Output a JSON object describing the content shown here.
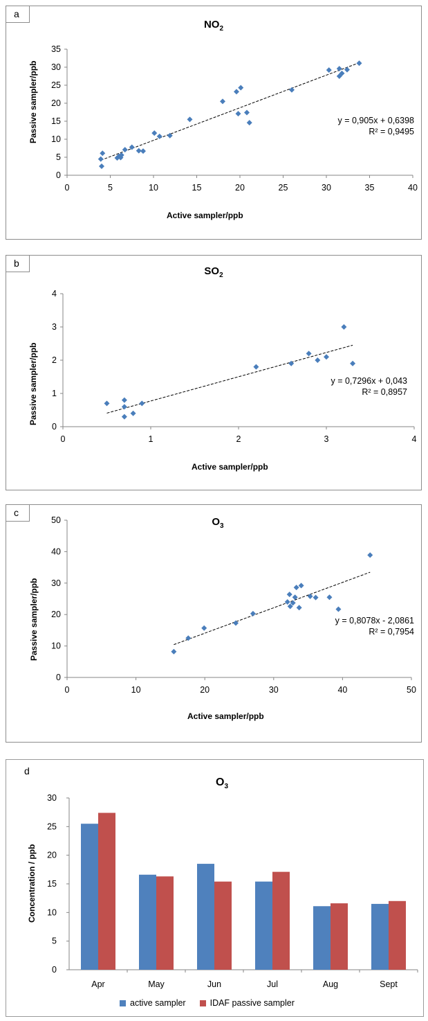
{
  "colors": {
    "point": "#4a7ebb",
    "bar_active": "#4f81bd",
    "bar_passive": "#c0504d",
    "trend": "#000000"
  },
  "panels": [
    {
      "letter": "a",
      "title": "NO",
      "title_sub": "2",
      "xlabel": "Active sampler/ppb",
      "ylabel": "Passive sampler/ppb",
      "eq_line1": "y = 0,905x + 0,6398",
      "eq_line2": "R² = 0,9495"
    },
    {
      "letter": "b",
      "title": "SO",
      "title_sub": "2",
      "xlabel": "Active sampler/ppb",
      "ylabel": "Passive sampler/ppb",
      "eq_line1": "y = 0,7296x + 0,043",
      "eq_line2": "R² = 0,8957"
    },
    {
      "letter": "c",
      "title": "O",
      "title_sub": "3",
      "xlabel": "Active sampler/ppb",
      "ylabel": "Passive sampler/ppb",
      "eq_line1": "y = 0,8078x - 2,0861",
      "eq_line2": "R² = 0,7954"
    },
    {
      "letter": "d",
      "title": "O",
      "title_sub": "3",
      "ylabel": "Concentration / ppb",
      "legend": [
        "active sampler",
        "IDAF passive sampler"
      ]
    }
  ],
  "chart_data": [
    {
      "type": "scatter",
      "title": "NO2",
      "xlabel": "Active sampler/ppb",
      "ylabel": "Passive sampler/ppb",
      "xlim": [
        0,
        40
      ],
      "ylim": [
        0,
        35
      ],
      "xticks": [
        0,
        5,
        10,
        15,
        20,
        25,
        30,
        35,
        40
      ],
      "yticks": [
        0,
        5,
        10,
        15,
        20,
        25,
        30,
        35
      ],
      "trendline": {
        "slope": 0.905,
        "intercept": 0.6398,
        "r2": 0.9495,
        "x_range": [
          3.9,
          34
        ]
      },
      "points": [
        [
          3.9,
          4.5
        ],
        [
          4.1,
          6.1
        ],
        [
          4.0,
          2.5
        ],
        [
          5.8,
          4.8
        ],
        [
          6.0,
          5.3
        ],
        [
          6.2,
          4.9
        ],
        [
          6.3,
          5.6
        ],
        [
          6.7,
          7.1
        ],
        [
          7.5,
          7.8
        ],
        [
          8.3,
          6.8
        ],
        [
          8.8,
          6.7
        ],
        [
          10.1,
          11.7
        ],
        [
          10.7,
          10.8
        ],
        [
          11.9,
          11.0
        ],
        [
          14.2,
          15.5
        ],
        [
          18.0,
          20.5
        ],
        [
          19.6,
          23.2
        ],
        [
          19.8,
          17.1
        ],
        [
          20.1,
          24.3
        ],
        [
          20.8,
          17.4
        ],
        [
          21.1,
          14.6
        ],
        [
          26.0,
          23.7
        ],
        [
          30.3,
          29.2
        ],
        [
          31.5,
          29.6
        ],
        [
          31.5,
          27.5
        ],
        [
          31.8,
          28.3
        ],
        [
          32.4,
          29.3
        ],
        [
          33.8,
          31.1
        ]
      ]
    },
    {
      "type": "scatter",
      "title": "SO2",
      "xlabel": "Active sampler/ppb",
      "ylabel": "Passive sampler/ppb",
      "xlim": [
        0,
        4
      ],
      "ylim": [
        0,
        4
      ],
      "xticks": [
        0,
        1,
        2,
        3,
        4
      ],
      "yticks": [
        0,
        1,
        2,
        3,
        4
      ],
      "trendline": {
        "slope": 0.7296,
        "intercept": 0.043,
        "r2": 0.8957,
        "x_range": [
          0.5,
          3.3
        ]
      },
      "points": [
        [
          0.5,
          0.7
        ],
        [
          0.7,
          0.8
        ],
        [
          0.7,
          0.6
        ],
        [
          0.7,
          0.3
        ],
        [
          0.8,
          0.4
        ],
        [
          0.9,
          0.7
        ],
        [
          2.2,
          1.8
        ],
        [
          2.6,
          1.9
        ],
        [
          2.8,
          2.2
        ],
        [
          2.9,
          2.0
        ],
        [
          3.0,
          2.1
        ],
        [
          3.2,
          3.0
        ],
        [
          3.3,
          1.9
        ]
      ]
    },
    {
      "type": "scatter",
      "title": "O3",
      "xlabel": "Active sampler/ppb",
      "ylabel": "Passive sampler/ppb",
      "xlim": [
        0,
        50
      ],
      "ylim": [
        0,
        50
      ],
      "xticks": [
        0,
        10,
        20,
        30,
        40,
        50
      ],
      "yticks": [
        0,
        10,
        20,
        30,
        40,
        50
      ],
      "trendline": {
        "slope": 0.8078,
        "intercept": -2.0861,
        "r2": 0.7954,
        "x_range": [
          15.5,
          44
        ]
      },
      "points": [
        [
          15.5,
          8.2
        ],
        [
          17.6,
          12.5
        ],
        [
          19.9,
          15.7
        ],
        [
          24.5,
          17.3
        ],
        [
          27.0,
          20.3
        ],
        [
          32.0,
          24.0
        ],
        [
          32.3,
          26.4
        ],
        [
          32.4,
          22.6
        ],
        [
          32.8,
          23.7
        ],
        [
          33.1,
          25.5
        ],
        [
          33.3,
          28.6
        ],
        [
          33.7,
          22.2
        ],
        [
          34.0,
          29.2
        ],
        [
          35.3,
          25.8
        ],
        [
          36.1,
          25.4
        ],
        [
          38.1,
          25.5
        ],
        [
          39.4,
          21.7
        ],
        [
          44.0,
          38.9
        ]
      ]
    },
    {
      "type": "bar",
      "title": "O3",
      "ylabel": "Concentration / ppb",
      "ylim": [
        0,
        30
      ],
      "yticks": [
        0,
        5,
        10,
        15,
        20,
        25,
        30
      ],
      "categories": [
        "Apr",
        "May",
        "Jun",
        "Jul",
        "Aug",
        "Sept"
      ],
      "series": [
        {
          "name": "active sampler",
          "values": [
            25.5,
            16.6,
            18.5,
            15.4,
            11.1,
            11.5
          ]
        },
        {
          "name": "IDAF passive sampler",
          "values": [
            27.4,
            16.3,
            15.4,
            17.1,
            11.6,
            12.0
          ]
        }
      ]
    }
  ]
}
